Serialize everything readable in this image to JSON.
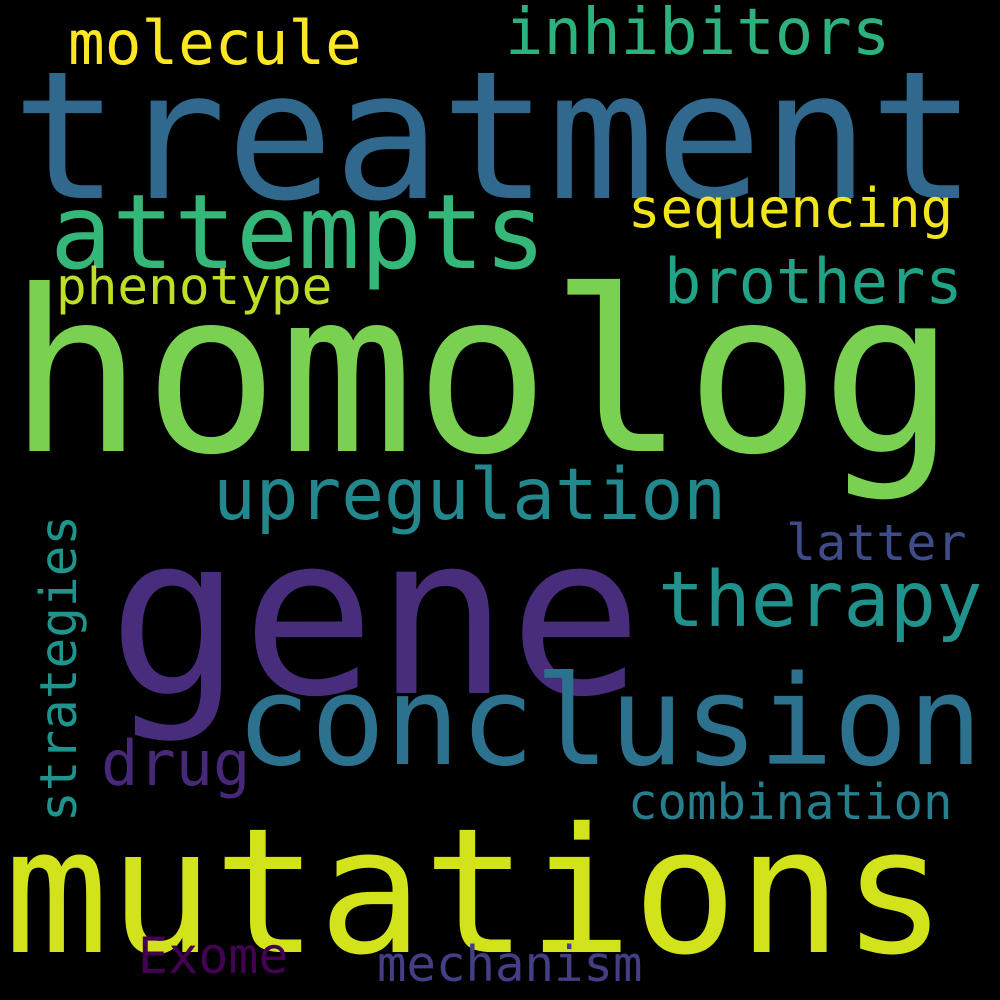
{
  "words": [
    {
      "key": "homolog",
      "text": "homolog",
      "color": "#7ad151"
    },
    {
      "key": "gene",
      "text": "gene",
      "color": "#472d7b"
    },
    {
      "key": "treatment",
      "text": "treatment",
      "color": "#31688e"
    },
    {
      "key": "mutations",
      "text": "mutations",
      "color": "#d2e21b"
    },
    {
      "key": "conclusion",
      "text": "conclusion",
      "color": "#2c728e"
    },
    {
      "key": "attempts",
      "text": "attempts",
      "color": "#35b779"
    },
    {
      "key": "therapy",
      "text": "therapy",
      "color": "#21918c"
    },
    {
      "key": "upregulation",
      "text": "upregulation",
      "color": "#23888e"
    },
    {
      "key": "inhibitors",
      "text": "inhibitors",
      "color": "#2db27d"
    },
    {
      "key": "brothers",
      "text": "brothers",
      "color": "#20a386"
    },
    {
      "key": "molecule",
      "text": "molecule",
      "color": "#fde725"
    },
    {
      "key": "sequencing",
      "text": "sequencing",
      "color": "#f1e51d"
    },
    {
      "key": "phenotype",
      "text": "phenotype",
      "color": "#bddf26"
    },
    {
      "key": "strategies",
      "text": "strategies",
      "color": "#1f948c"
    },
    {
      "key": "latter",
      "text": "latter",
      "color": "#3e4c8a"
    },
    {
      "key": "drug",
      "text": "drug",
      "color": "#482878"
    },
    {
      "key": "combination",
      "text": "combination",
      "color": "#277f8e"
    },
    {
      "key": "mechanism",
      "text": "mechanism",
      "color": "#433e85"
    },
    {
      "key": "exome",
      "text": "Exome",
      "color": "#440154"
    }
  ]
}
